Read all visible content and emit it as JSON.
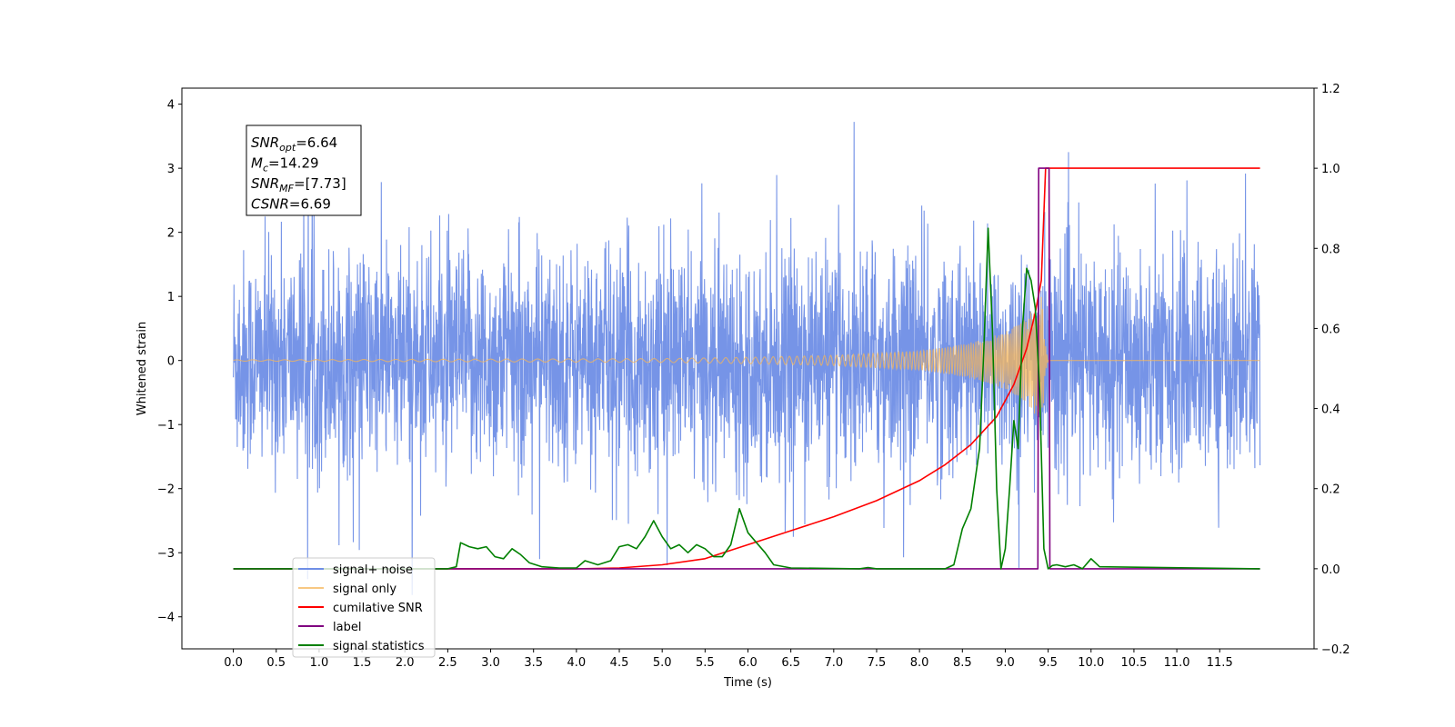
{
  "chart_data": {
    "type": "line",
    "title": "",
    "xlabel": "Time (s)",
    "ylabel": "Whitened strain",
    "xlim": [
      -0.6,
      12.6
    ],
    "ylim": [
      -4.5,
      4.25
    ],
    "y2lim": [
      -0.2,
      1.2
    ],
    "x_ticks": [
      "0.0",
      "0.5",
      "1.0",
      "1.5",
      "2.0",
      "2.5",
      "3.0",
      "3.5",
      "4.0",
      "4.5",
      "5.0",
      "5.5",
      "6.0",
      "6.5",
      "7.0",
      "7.5",
      "8.0",
      "8.5",
      "9.0",
      "9.5",
      "10.0",
      "10.5",
      "11.0",
      "11.5"
    ],
    "y_ticks": [
      "4",
      "3",
      "2",
      "1",
      "0",
      "−1",
      "−2",
      "−3",
      "−4"
    ],
    "y2_ticks": [
      "1.2",
      "1.0",
      "0.8",
      "0.6",
      "0.4",
      "0.2",
      "0.0",
      "−0.2"
    ],
    "legend": {
      "position": "lower-left",
      "entries": [
        "signal+ noise",
        "signal only",
        "cumilative SNR",
        "label",
        "signal statistics"
      ]
    },
    "annotation": {
      "lines": [
        {
          "sym": "SNR",
          "sub": "opt",
          "val": "=6.64"
        },
        {
          "sym": "M",
          "sub": "c",
          "val": "=14.29"
        },
        {
          "sym": "SNR",
          "sub": "MF",
          "val": "=[7.73]"
        },
        {
          "sym": "CSNR",
          "sub": "",
          "val": "=6.69"
        }
      ]
    },
    "series": [
      {
        "name": "signal+ noise",
        "axis": "left",
        "color": "#6f8ee6",
        "noise_envelope": {
          "x": [
            0,
            11.97
          ],
          "typical_amplitude": 1.7,
          "max": 3.86,
          "min": -4.1
        }
      },
      {
        "name": "signal only",
        "axis": "left",
        "color": "#f6b55a",
        "amplitude_envelope": {
          "x": [
            0,
            5,
            6,
            7,
            8,
            8.5,
            8.8,
            9.0,
            9.2,
            9.35,
            9.43,
            9.46,
            9.5,
            11.97
          ],
          "amp": [
            0.01,
            0.03,
            0.05,
            0.08,
            0.15,
            0.25,
            0.35,
            0.45,
            0.6,
            0.85,
            1.05,
            0.3,
            0.0,
            0.0
          ]
        }
      },
      {
        "name": "cumilative SNR",
        "axis": "right",
        "color": "#ff0000",
        "x": [
          0,
          2.0,
          4.0,
          4.5,
          5.0,
          5.5,
          6.0,
          6.5,
          7.0,
          7.5,
          8.0,
          8.3,
          8.6,
          8.9,
          9.1,
          9.25,
          9.35,
          9.42,
          9.47,
          11.97
        ],
        "y": [
          0.0,
          0.0,
          0.0,
          0.002,
          0.01,
          0.025,
          0.06,
          0.095,
          0.13,
          0.17,
          0.22,
          0.26,
          0.31,
          0.38,
          0.46,
          0.55,
          0.64,
          0.72,
          1.0,
          1.0
        ]
      },
      {
        "name": "label",
        "axis": "right",
        "color": "#800080",
        "x": [
          0,
          9.38,
          9.39,
          9.51,
          9.52,
          11.97
        ],
        "y": [
          0.0,
          0.0,
          1.0,
          1.0,
          0.0,
          0.0
        ]
      },
      {
        "name": "signal statistics",
        "axis": "right",
        "color": "#008000",
        "x": [
          0,
          2.5,
          2.6,
          2.65,
          2.75,
          2.85,
          2.95,
          3.05,
          3.15,
          3.25,
          3.35,
          3.45,
          3.6,
          3.8,
          4.0,
          4.1,
          4.25,
          4.4,
          4.5,
          4.6,
          4.7,
          4.8,
          4.9,
          5.0,
          5.1,
          5.2,
          5.3,
          5.4,
          5.5,
          5.6,
          5.7,
          5.8,
          5.9,
          6.0,
          6.1,
          6.2,
          6.3,
          6.5,
          7.3,
          7.4,
          7.5,
          8.3,
          8.4,
          8.5,
          8.6,
          8.7,
          8.75,
          8.8,
          8.85,
          8.9,
          8.95,
          9.0,
          9.05,
          9.1,
          9.15,
          9.2,
          9.25,
          9.3,
          9.35,
          9.4,
          9.45,
          9.5,
          9.55,
          9.6,
          9.7,
          9.8,
          9.9,
          10.0,
          10.1,
          11.97
        ],
        "y": [
          0.0,
          0.0,
          0.005,
          0.065,
          0.055,
          0.05,
          0.055,
          0.03,
          0.025,
          0.05,
          0.035,
          0.015,
          0.005,
          0.002,
          0.002,
          0.02,
          0.01,
          0.02,
          0.055,
          0.06,
          0.05,
          0.08,
          0.12,
          0.08,
          0.05,
          0.06,
          0.04,
          0.06,
          0.05,
          0.03,
          0.03,
          0.06,
          0.15,
          0.09,
          0.065,
          0.04,
          0.01,
          0.002,
          0.0,
          0.003,
          0.0,
          0.0,
          0.01,
          0.1,
          0.15,
          0.3,
          0.55,
          0.85,
          0.6,
          0.2,
          0.0,
          0.05,
          0.2,
          0.37,
          0.3,
          0.6,
          0.75,
          0.72,
          0.65,
          0.45,
          0.05,
          0.0,
          0.008,
          0.01,
          0.005,
          0.01,
          0.0,
          0.025,
          0.005,
          0.0
        ]
      }
    ]
  }
}
